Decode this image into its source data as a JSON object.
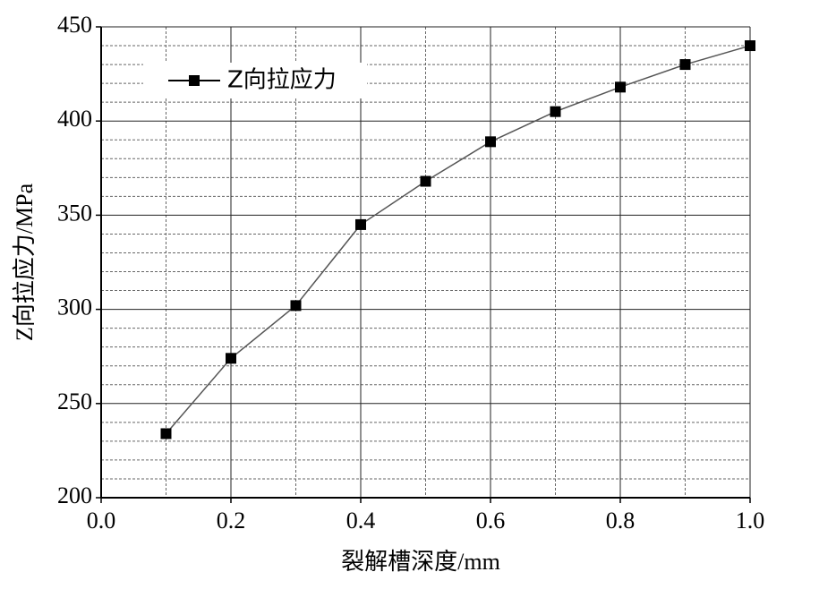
{
  "chart_data": {
    "type": "line",
    "xlabel": "裂解槽深度/mm",
    "ylabel": "Z向拉应力/MPa",
    "x": [
      0.1,
      0.2,
      0.3,
      0.4,
      0.5,
      0.6,
      0.7,
      0.8,
      0.9,
      1.0
    ],
    "series": [
      {
        "name": "Z向拉应力",
        "color": "#000000",
        "line_color": "#555555",
        "values": [
          234,
          274,
          302,
          345,
          368,
          389,
          405,
          418,
          430,
          440
        ]
      }
    ],
    "xlim": [
      0,
      1.0
    ],
    "xticks": [
      {
        "value": 0,
        "label": "0.0"
      },
      0.2,
      0.4,
      0.6,
      0.8,
      {
        "value": 1.0,
        "label": "1.0"
      }
    ],
    "ylim": [
      200,
      450
    ],
    "yticks": [
      200,
      250,
      300,
      350,
      400,
      450
    ],
    "minor_xticks": [
      0.1,
      0.3,
      0.5,
      0.7,
      0.9
    ],
    "minor_yticks": [
      210,
      220,
      230,
      240,
      260,
      270,
      280,
      290,
      310,
      320,
      330,
      340,
      360,
      370,
      380,
      390,
      410,
      420,
      430,
      440
    ],
    "grid": true,
    "legend": "upper-left"
  }
}
